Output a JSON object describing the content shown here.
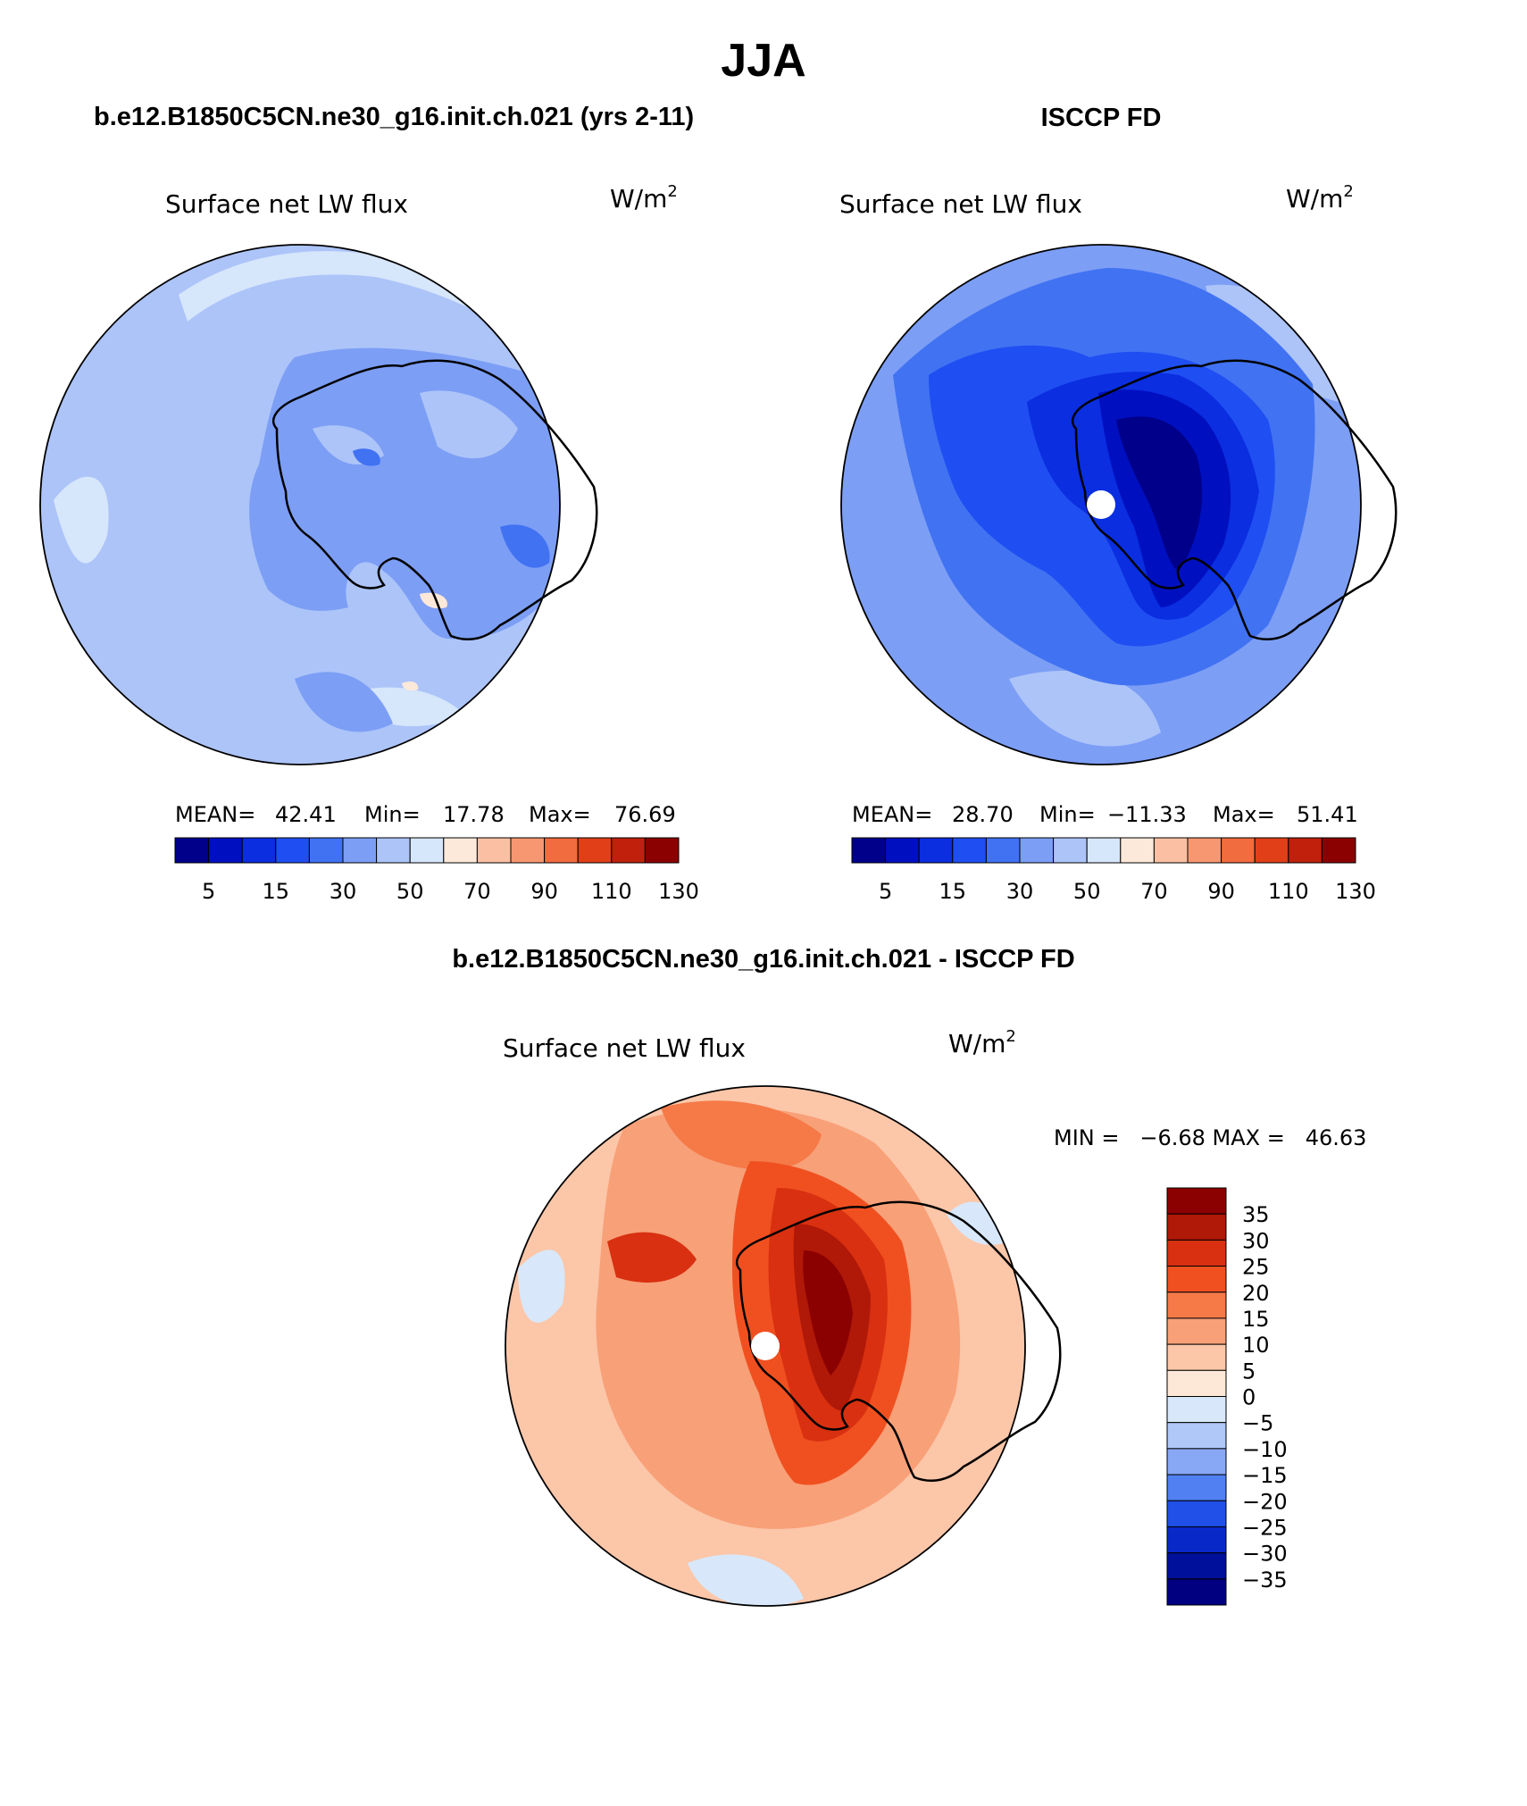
{
  "figure_title": "JJA",
  "panels": [
    {
      "header": "b.e12.B1850C5CN.ne30_g16.init.ch.021 (yrs 2-11)",
      "variable": "Surface net LW flux",
      "units": "W/m",
      "units_sup": "2",
      "stats": {
        "mean_label": "MEAN=",
        "mean": "42.41",
        "min_label": "Min=",
        "min": "17.78",
        "max_label": "Max=",
        "max": "76.69"
      },
      "map": {
        "projection": "south polar stereographic",
        "pole_missing": false
      }
    },
    {
      "header": "ISCCP FD",
      "variable": "Surface net LW flux",
      "units": "W/m",
      "units_sup": "2",
      "stats": {
        "mean_label": "MEAN=",
        "mean": "28.70",
        "min_label": "Min=",
        "min": "−11.33",
        "max_label": "Max=",
        "max": "51.41"
      },
      "map": {
        "projection": "south polar stereographic",
        "pole_missing": true
      }
    },
    {
      "header": "b.e12.B1850C5CN.ne30_g16.init.ch.021 - ISCCP FD",
      "variable": "Surface net LW flux",
      "units": "W/m",
      "units_sup": "2",
      "minmax_text": "MIN =   −6.68 MAX =   46.63",
      "map": {
        "projection": "south polar stereographic",
        "pole_missing": true
      }
    }
  ],
  "colorbars": {
    "absolute": {
      "orientation": "horizontal",
      "labels": [
        "5",
        "15",
        "30",
        "50",
        "70",
        "90",
        "110",
        "130"
      ],
      "colors": [
        "#00008b",
        "#0010c0",
        "#0a2ee0",
        "#1f4ff2",
        "#4172f2",
        "#7c9ef5",
        "#adc4f9",
        "#d6e6fb",
        "#fde9da",
        "#fbc0a3",
        "#f79771",
        "#f16c3e",
        "#e13f18",
        "#c0200c",
        "#8b0000"
      ]
    },
    "difference": {
      "orientation": "vertical",
      "labels": [
        "35",
        "30",
        "25",
        "20",
        "15",
        "10",
        "5",
        "0",
        "−5",
        "−10",
        "−15",
        "−20",
        "−25",
        "−30",
        "−35"
      ],
      "colors": [
        "#8b0000",
        "#b01808",
        "#d83010",
        "#f05020",
        "#f57a48",
        "#f8a078",
        "#fcc6a8",
        "#fde8d8",
        "#d8e8fa",
        "#b0c8f8",
        "#88a8f5",
        "#5080f2",
        "#2050e8",
        "#0828c8",
        "#00109a",
        "#000080"
      ]
    }
  }
}
